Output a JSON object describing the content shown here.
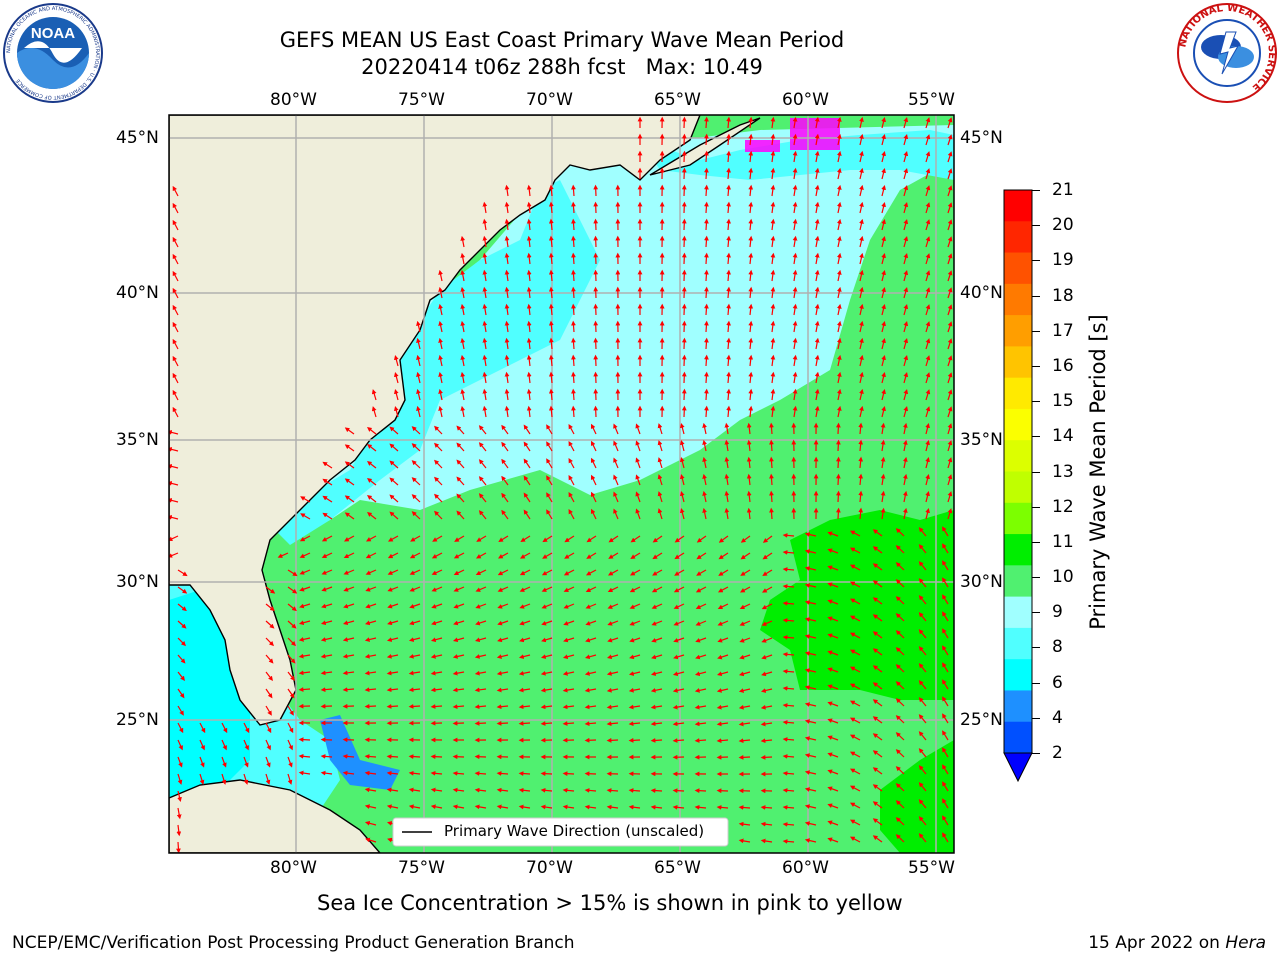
{
  "header": {
    "title_line1": "GEFS MEAN US East Coast Primary Wave Mean Period",
    "title_line2": "20220414 t06z 288h fcst   Max: 10.49",
    "left_logo_text": "NOAA",
    "left_logo_ring_text": "NATIONAL OCEANIC AND ATMOSPHERIC ADMINISTRATION · U.S. DEPARTMENT OF COMMERCE",
    "right_logo_ring_text": "NATIONAL WEATHER SERVICE"
  },
  "axes": {
    "lon_labels": [
      "80°W",
      "75°W",
      "70°W",
      "65°W",
      "60°W",
      "55°W"
    ],
    "lat_labels": [
      "45°N",
      "40°N",
      "35°N",
      "30°N",
      "25°N"
    ]
  },
  "legend": {
    "label": "Primary Wave Direction (unscaled)"
  },
  "colorbar": {
    "label": "Primary Wave Mean Period [s]",
    "ticks": [
      "21",
      "20",
      "19",
      "18",
      "17",
      "16",
      "15",
      "14",
      "13",
      "12",
      "11",
      "10",
      "9",
      "8",
      "6",
      "4",
      "2"
    ],
    "colors": [
      "#ff0000",
      "#ff2600",
      "#ff5200",
      "#ff7a00",
      "#ff9e00",
      "#ffc400",
      "#ffea00",
      "#fbff00",
      "#dcff00",
      "#c0ff00",
      "#7cff00",
      "#00ee00",
      "#50f070",
      "#a0ffff",
      "#50ffff",
      "#00ffff",
      "#1e90ff",
      "#0050ff"
    ],
    "underflow_color": "#0000ff"
  },
  "colors": {
    "land": "#efeedb",
    "arrow": "#ff0000",
    "grid": "#b0b0b0",
    "sea_ice": "#ff00ff"
  },
  "caption": "Sea Ice Concentration > 15% is shown in pink to yellow",
  "footer": {
    "left": "NCEP/EMC/Verification Post Processing Product Generation Branch",
    "date": "15 Apr 2022 on ",
    "host": "Hera"
  }
}
